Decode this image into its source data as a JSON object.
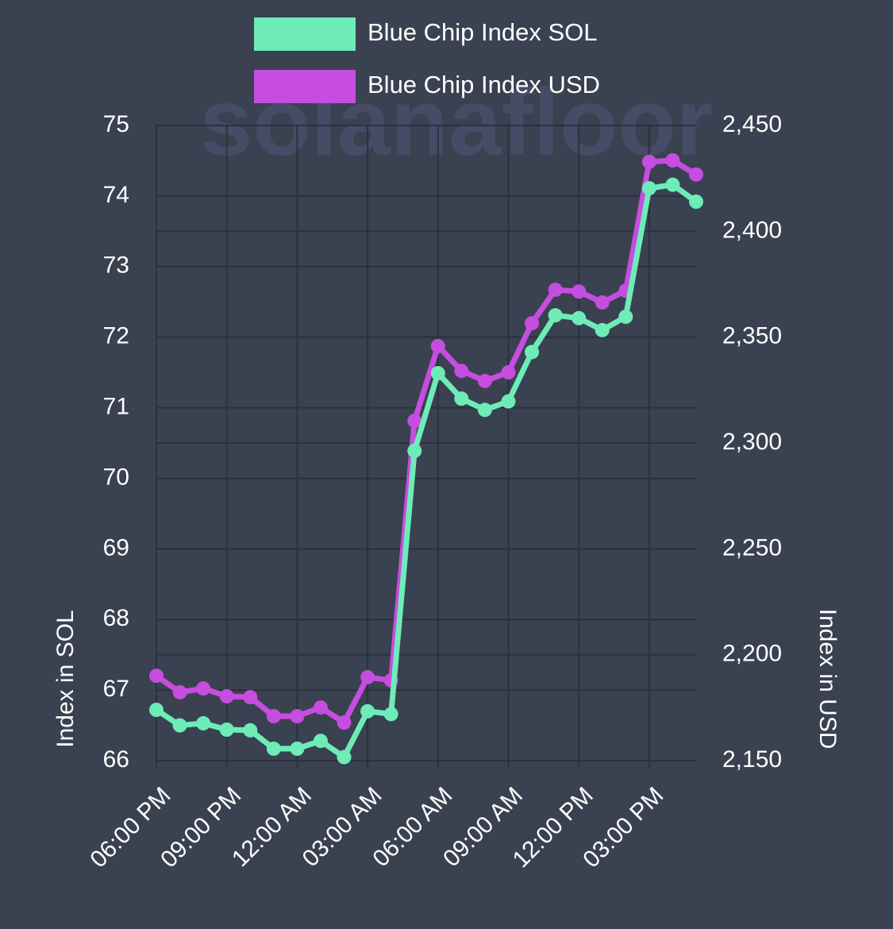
{
  "chart_data": {
    "type": "line",
    "watermark": "solanafloor",
    "y_label": "Index in SOL",
    "y2_label": "Index in USD",
    "categories": [
      "06:00 PM",
      null,
      null,
      "09:00 PM",
      null,
      null,
      "12:00 AM",
      null,
      null,
      "03:00 AM",
      null,
      null,
      "06:00 AM",
      null,
      null,
      "09:00 AM",
      null,
      null,
      "12:00 PM",
      null,
      null,
      "03:00 PM",
      null,
      null
    ],
    "series": [
      {
        "name": "Blue Chip Index SOL",
        "color": "#6eecb8",
        "axis": "y",
        "values": [
          66.72,
          66.5,
          66.53,
          66.44,
          66.43,
          66.17,
          66.17,
          66.28,
          66.05,
          66.7,
          66.66,
          70.39,
          71.49,
          71.13,
          70.97,
          71.09,
          71.79,
          72.31,
          72.27,
          72.1,
          72.29,
          74.11,
          74.16,
          73.92
        ]
      },
      {
        "name": "Blue Chip Index USD",
        "color": "#c64ddf",
        "axis": "y2",
        "values": [
          2190.1,
          2182.3,
          2184.1,
          2180.4,
          2180,
          2171,
          2171,
          2175.1,
          2168,
          2189.4,
          2187.9,
          2310.5,
          2345.8,
          2334.1,
          2329.3,
          2333.4,
          2356.6,
          2372.4,
          2371.6,
          2366.4,
          2372,
          2432.8,
          2433.5,
          2426.8
        ]
      }
    ],
    "ylim": [
      66,
      75
    ],
    "yticks": [
      66,
      67,
      68,
      69,
      70,
      71,
      72,
      73,
      74,
      75
    ],
    "y2lim": [
      2150,
      2450
    ],
    "y2ticks": [
      {
        "value": 2150,
        "label": "2,150"
      },
      {
        "value": 2200,
        "label": "2,200"
      },
      {
        "value": 2250,
        "label": "2,250"
      },
      {
        "value": 2300,
        "label": "2,300"
      },
      {
        "value": 2350,
        "label": "2,350"
      },
      {
        "value": 2400,
        "label": "2,400"
      },
      {
        "value": 2450,
        "label": "2,450"
      }
    ],
    "grid": true,
    "legend": "top"
  }
}
